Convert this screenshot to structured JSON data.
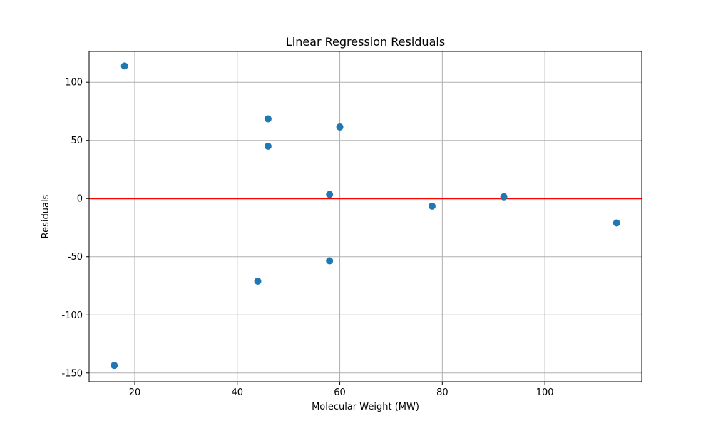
{
  "chart_data": {
    "type": "scatter",
    "title": "Linear Regression Residuals",
    "xlabel": "Molecular Weight (MW)",
    "ylabel": "Residuals",
    "xlim": [
      11.1,
      118.9
    ],
    "ylim": [
      -157.5,
      126.5
    ],
    "xticks": [
      20,
      40,
      60,
      80,
      100
    ],
    "yticks": [
      -150,
      -100,
      -50,
      0,
      50,
      100
    ],
    "grid": true,
    "series": [
      {
        "points": [
          {
            "x": 16,
            "y": -143.5
          },
          {
            "x": 18,
            "y": 114
          },
          {
            "x": 44,
            "y": -71
          },
          {
            "x": 46,
            "y": 68.5
          },
          {
            "x": 46,
            "y": 45
          },
          {
            "x": 58,
            "y": 3.5
          },
          {
            "x": 58,
            "y": -53.5
          },
          {
            "x": 60,
            "y": 61.5
          },
          {
            "x": 78,
            "y": -6.5
          },
          {
            "x": 92,
            "y": 1.5
          },
          {
            "x": 114,
            "y": -21
          }
        ],
        "color": "#1f77b4"
      }
    ],
    "reference_line": {
      "y": 0,
      "color": "#ff0000"
    }
  }
}
